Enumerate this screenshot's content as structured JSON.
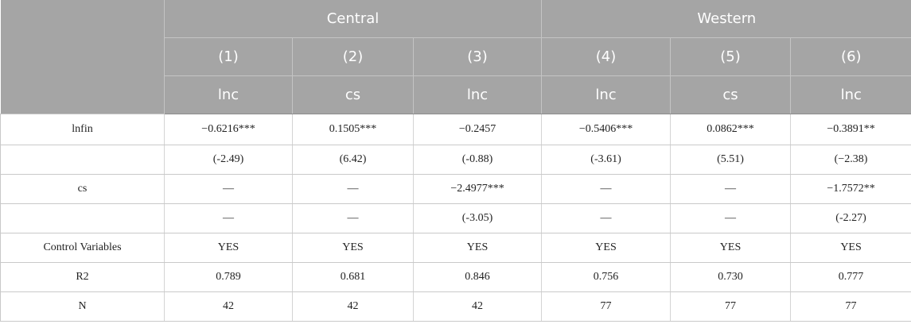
{
  "header": {
    "groups": [
      "Central",
      "Western"
    ],
    "numbers": [
      "(1)",
      "(2)",
      "(3)",
      "(4)",
      "(5)",
      "(6)"
    ],
    "dependent": [
      "lnc",
      "cs",
      "lnc",
      "lnc",
      "cs",
      "lnc"
    ]
  },
  "rows": [
    {
      "label": "lnfin",
      "cells": [
        "−0.6216***",
        "0.1505***",
        "−0.2457",
        "−0.5406***",
        "0.0862***",
        "−0.3891**"
      ]
    },
    {
      "label": "",
      "cells": [
        "(-2.49)",
        "(6.42)",
        "(-0.88)",
        "(-3.61)",
        "(5.51)",
        "(−2.38)"
      ]
    },
    {
      "label": "cs",
      "cells": [
        "—",
        "—",
        "−2.4977***",
        "—",
        "—",
        "−1.7572**"
      ]
    },
    {
      "label": "",
      "cells": [
        "—",
        "—",
        "(-3.05)",
        "—",
        "—",
        "(-2.27)"
      ]
    },
    {
      "label": "Control Variables",
      "cells": [
        "YES",
        "YES",
        "YES",
        "YES",
        "YES",
        "YES"
      ]
    },
    {
      "label": "R2",
      "cells": [
        "0.789",
        "0.681",
        "0.846",
        "0.756",
        "0.730",
        "0.777"
      ]
    },
    {
      "label": "N",
      "cells": [
        "42",
        "42",
        "42",
        "77",
        "77",
        "77"
      ]
    }
  ]
}
